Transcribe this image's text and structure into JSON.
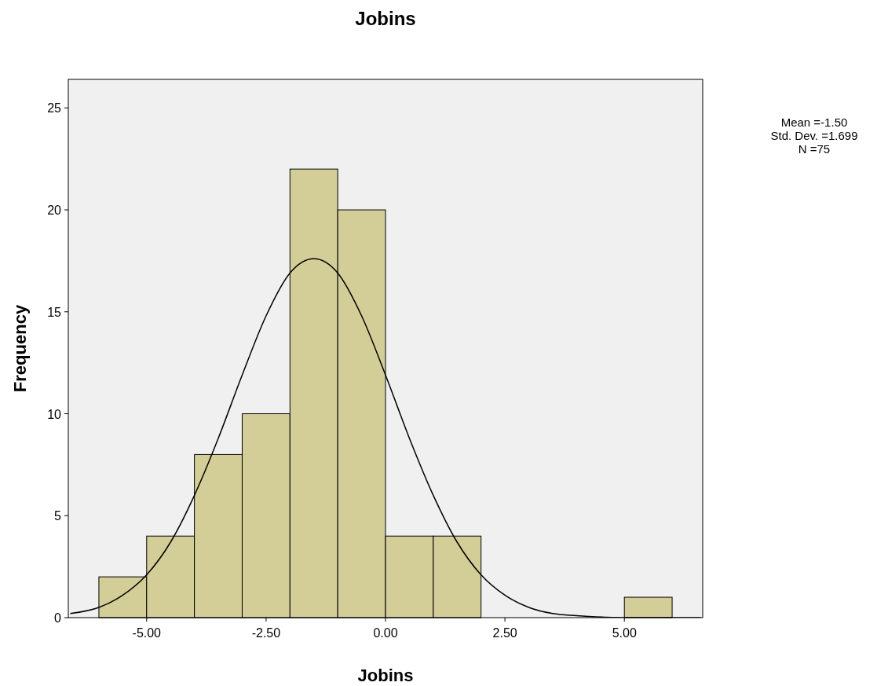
{
  "chart_data": {
    "type": "histogram",
    "title": "Jobins",
    "xlabel": "Jobins",
    "ylabel": "Frequency",
    "bins": [
      -6,
      -5,
      -4,
      -3,
      -2,
      -1,
      0,
      1,
      2,
      3,
      4,
      5,
      6
    ],
    "values": [
      2,
      4,
      8,
      10,
      22,
      20,
      4,
      4,
      0,
      0,
      0,
      1
    ],
    "color": "#d3ce97",
    "series": [
      {
        "type": "line",
        "color": "#000000",
        "x": [
          -6.6,
          -6,
          -5.5,
          -5,
          -4.5,
          -4,
          -3.5,
          -3,
          -2.5,
          -2,
          -1.5,
          -1,
          -0.5,
          0,
          0.5,
          1,
          1.5,
          2,
          2.5,
          3,
          3.5,
          4,
          5,
          6.6
        ],
        "values": [
          0.2,
          0.5,
          1.1,
          2.1,
          3.7,
          6.0,
          8.8,
          11.9,
          14.8,
          16.9,
          17.6,
          16.9,
          14.8,
          11.9,
          8.8,
          6.0,
          3.7,
          2.1,
          1.1,
          0.5,
          0.2,
          0.1,
          0,
          0
        ]
      }
    ],
    "xlim": [
      -6.64,
      6.64
    ],
    "xticks": [
      {
        "value": -5,
        "label": "-5.00"
      },
      {
        "value": -2.5,
        "label": "-2.50"
      },
      {
        "value": 0,
        "label": "0.00"
      },
      {
        "value": 2.5,
        "label": "2.50"
      },
      {
        "value": 5,
        "label": "5.00"
      }
    ],
    "ylim": [
      0,
      26.4
    ],
    "yticks": [
      0,
      5,
      10,
      15,
      20,
      25
    ],
    "grid": false,
    "annotations": [
      "Mean =-1.50",
      "Std. Dev. =1.699",
      "N =75"
    ]
  }
}
